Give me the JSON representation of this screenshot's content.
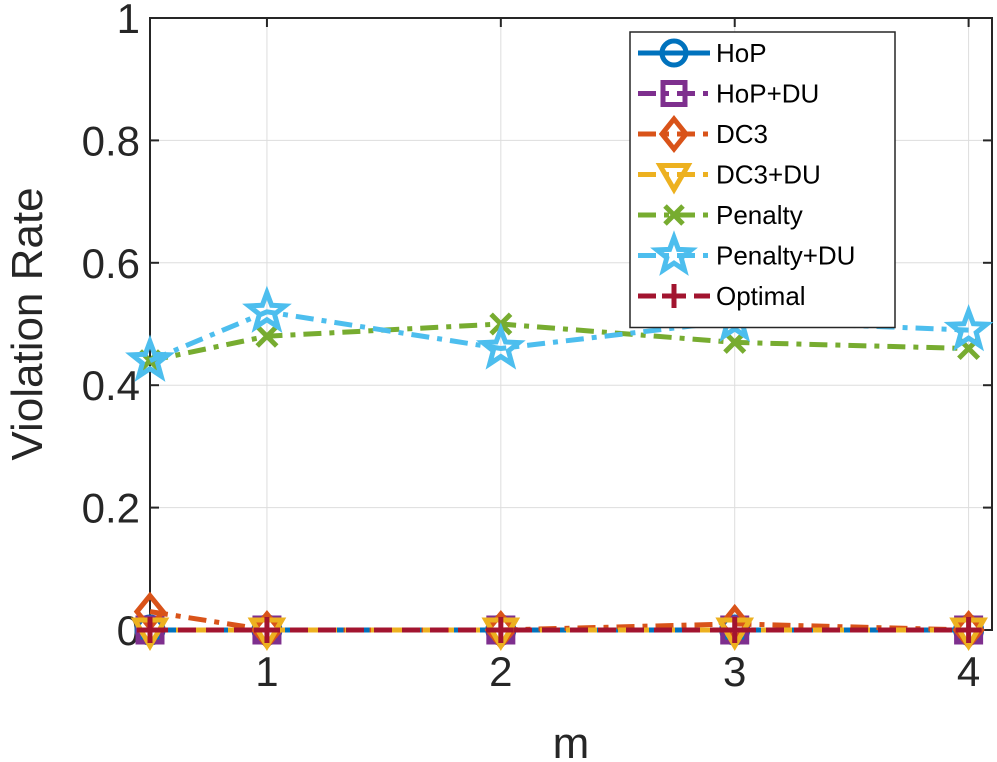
{
  "chart_data": {
    "type": "line",
    "title": "",
    "xlabel": "m",
    "ylabel": "Violation Rate",
    "xlim": [
      0.5,
      4.1
    ],
    "ylim": [
      0,
      1
    ],
    "xticks": [
      1,
      2,
      3,
      4
    ],
    "yticks": [
      0,
      0.2,
      0.4,
      0.6,
      0.8,
      1
    ],
    "ytick_labels": [
      "0",
      "0.2",
      "0.4",
      "0.6",
      "0.8",
      "1"
    ],
    "xtick_labels": [
      "1",
      "2",
      "3",
      "4"
    ],
    "grid": true,
    "legend_position": "top-right",
    "x": [
      0.5,
      1,
      2,
      3,
      4
    ],
    "series": [
      {
        "name": "HoP",
        "values": [
          0,
          0,
          0,
          0,
          0
        ],
        "color": "#0072BD",
        "marker": "circle",
        "dash": "solid"
      },
      {
        "name": "HoP+DU",
        "values": [
          0,
          0,
          0,
          0,
          0
        ],
        "color": "#7E2F8E",
        "marker": "square",
        "dash": "dashdot"
      },
      {
        "name": "DC3",
        "values": [
          0.03,
          0,
          0,
          0.01,
          0
        ],
        "color": "#D95319",
        "marker": "diamond",
        "dash": "dashdot"
      },
      {
        "name": "DC3+DU",
        "values": [
          0,
          0,
          0,
          0,
          0
        ],
        "color": "#EDB120",
        "marker": "triangle-down",
        "dash": "dashdot"
      },
      {
        "name": "Penalty",
        "values": [
          0.44,
          0.48,
          0.5,
          0.47,
          0.46
        ],
        "color": "#77AC30",
        "marker": "x",
        "dash": "dashdot"
      },
      {
        "name": "Penalty+DU",
        "values": [
          0.44,
          0.52,
          0.46,
          0.505,
          0.49
        ],
        "color": "#4DBEEE",
        "marker": "star",
        "dash": "dashdot"
      },
      {
        "name": "Optimal",
        "values": [
          0,
          0,
          0,
          0,
          0
        ],
        "color": "#A2142F",
        "marker": "plus",
        "dash": "dashed"
      }
    ]
  }
}
